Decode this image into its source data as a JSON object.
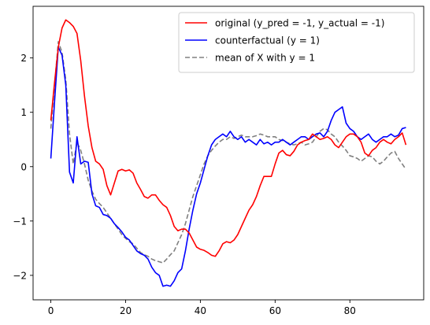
{
  "chart_data": {
    "type": "line",
    "title": "",
    "xlabel": "",
    "ylabel": "",
    "xlim": [
      -4.75,
      99.75
    ],
    "ylim": [
      -2.45,
      2.95
    ],
    "xticks": [
      0,
      20,
      40,
      60,
      80
    ],
    "yticks": [
      -2,
      -1,
      0,
      1,
      2
    ],
    "grid": false,
    "legend_position": "top-right",
    "series": [
      {
        "name": "original (y_pred = -1, y_actual = -1)",
        "color": "#ff0000",
        "dash": "solid",
        "x": [
          0,
          1,
          2,
          3,
          4,
          5,
          6,
          7,
          8,
          9,
          10,
          11,
          12,
          13,
          14,
          15,
          16,
          17,
          18,
          19,
          20,
          21,
          22,
          23,
          24,
          25,
          26,
          27,
          28,
          29,
          30,
          31,
          32,
          33,
          34,
          35,
          36,
          37,
          38,
          39,
          40,
          41,
          42,
          43,
          44,
          45,
          46,
          47,
          48,
          49,
          50,
          51,
          52,
          53,
          54,
          55,
          56,
          57,
          58,
          59,
          60,
          61,
          62,
          63,
          64,
          65,
          66,
          67,
          68,
          69,
          70,
          71,
          72,
          73,
          74,
          75,
          76,
          77,
          78,
          79,
          80,
          81,
          82,
          83,
          84,
          85,
          86,
          87,
          88,
          89,
          90,
          91,
          92,
          93,
          94,
          95
        ],
        "y": [
          0.85,
          1.55,
          2.2,
          2.55,
          2.7,
          2.65,
          2.58,
          2.45,
          1.95,
          1.3,
          0.75,
          0.35,
          0.1,
          0.05,
          -0.05,
          -0.35,
          -0.52,
          -0.3,
          -0.08,
          -0.05,
          -0.08,
          -0.06,
          -0.12,
          -0.3,
          -0.42,
          -0.55,
          -0.58,
          -0.52,
          -0.52,
          -0.62,
          -0.7,
          -0.75,
          -0.9,
          -1.1,
          -1.18,
          -1.15,
          -1.15,
          -1.22,
          -1.35,
          -1.48,
          -1.52,
          -1.54,
          -1.58,
          -1.63,
          -1.65,
          -1.55,
          -1.42,
          -1.38,
          -1.4,
          -1.35,
          -1.25,
          -1.1,
          -0.95,
          -0.8,
          -0.7,
          -0.55,
          -0.35,
          -0.18,
          -0.18,
          -0.18,
          0.05,
          0.25,
          0.3,
          0.22,
          0.2,
          0.28,
          0.4,
          0.45,
          0.48,
          0.5,
          0.6,
          0.55,
          0.5,
          0.52,
          0.55,
          0.5,
          0.4,
          0.35,
          0.45,
          0.55,
          0.6,
          0.6,
          0.55,
          0.45,
          0.25,
          0.2,
          0.3,
          0.35,
          0.45,
          0.5,
          0.45,
          0.42,
          0.5,
          0.55,
          0.62,
          0.4
        ]
      },
      {
        "name": "counterfactual (y = 1)",
        "color": "#0000ff",
        "dash": "solid",
        "x": [
          0,
          1,
          2,
          3,
          4,
          5,
          6,
          7,
          8,
          9,
          10,
          11,
          12,
          13,
          14,
          15,
          16,
          17,
          18,
          19,
          20,
          21,
          22,
          23,
          24,
          25,
          26,
          27,
          28,
          29,
          30,
          31,
          32,
          33,
          34,
          35,
          36,
          37,
          38,
          39,
          40,
          41,
          42,
          43,
          44,
          45,
          46,
          47,
          48,
          49,
          50,
          51,
          52,
          53,
          54,
          55,
          56,
          57,
          58,
          59,
          60,
          61,
          62,
          63,
          64,
          65,
          66,
          67,
          68,
          69,
          70,
          71,
          72,
          73,
          74,
          75,
          76,
          77,
          78,
          79,
          80,
          81,
          82,
          83,
          84,
          85,
          86,
          87,
          88,
          89,
          90,
          91,
          92,
          93,
          94,
          95
        ],
        "y": [
          0.15,
          1.2,
          2.2,
          2.05,
          1.5,
          -0.1,
          -0.3,
          0.55,
          0.05,
          0.1,
          0.08,
          -0.5,
          -0.72,
          -0.75,
          -0.88,
          -0.9,
          -0.95,
          -1.05,
          -1.12,
          -1.2,
          -1.3,
          -1.35,
          -1.45,
          -1.55,
          -1.6,
          -1.63,
          -1.7,
          -1.85,
          -1.95,
          -2.0,
          -2.2,
          -2.18,
          -2.2,
          -2.1,
          -1.95,
          -1.88,
          -1.55,
          -1.15,
          -0.8,
          -0.5,
          -0.3,
          -0.05,
          0.2,
          0.4,
          0.5,
          0.55,
          0.6,
          0.55,
          0.65,
          0.55,
          0.5,
          0.55,
          0.45,
          0.5,
          0.45,
          0.4,
          0.5,
          0.42,
          0.45,
          0.4,
          0.45,
          0.45,
          0.5,
          0.45,
          0.4,
          0.45,
          0.5,
          0.55,
          0.55,
          0.5,
          0.55,
          0.6,
          0.62,
          0.55,
          0.65,
          0.85,
          1.0,
          1.05,
          1.1,
          0.8,
          0.7,
          0.65,
          0.55,
          0.5,
          0.55,
          0.6,
          0.5,
          0.45,
          0.5,
          0.55,
          0.55,
          0.6,
          0.55,
          0.58,
          0.7,
          0.72
        ]
      },
      {
        "name": "mean of X with y = 1",
        "color": "#808080",
        "dash": "dashed",
        "x": [
          0,
          1,
          2,
          3,
          4,
          5,
          6,
          7,
          8,
          9,
          10,
          11,
          12,
          13,
          14,
          15,
          16,
          17,
          18,
          19,
          20,
          21,
          22,
          23,
          24,
          25,
          26,
          27,
          28,
          29,
          30,
          31,
          32,
          33,
          34,
          35,
          36,
          37,
          38,
          39,
          40,
          41,
          42,
          43,
          44,
          45,
          46,
          47,
          48,
          49,
          50,
          51,
          52,
          53,
          54,
          55,
          56,
          57,
          58,
          59,
          60,
          61,
          62,
          63,
          64,
          65,
          66,
          67,
          68,
          69,
          70,
          71,
          72,
          73,
          74,
          75,
          76,
          77,
          78,
          79,
          80,
          81,
          82,
          83,
          84,
          85,
          86,
          87,
          88,
          89,
          90,
          91,
          92,
          93,
          94,
          95
        ],
        "y": [
          0.7,
          1.5,
          2.3,
          2.1,
          1.6,
          0.6,
          0.05,
          0.45,
          0.3,
          0.05,
          -0.25,
          -0.45,
          -0.6,
          -0.68,
          -0.75,
          -0.85,
          -0.95,
          -1.05,
          -1.15,
          -1.25,
          -1.32,
          -1.38,
          -1.42,
          -1.5,
          -1.58,
          -1.62,
          -1.65,
          -1.7,
          -1.73,
          -1.75,
          -1.77,
          -1.7,
          -1.62,
          -1.55,
          -1.4,
          -1.25,
          -1.05,
          -0.8,
          -0.55,
          -0.35,
          -0.15,
          0.05,
          0.2,
          0.3,
          0.38,
          0.45,
          0.5,
          0.5,
          0.55,
          0.52,
          0.55,
          0.58,
          0.55,
          0.55,
          0.55,
          0.57,
          0.6,
          0.58,
          0.55,
          0.55,
          0.55,
          0.5,
          0.48,
          0.45,
          0.42,
          0.4,
          0.42,
          0.45,
          0.4,
          0.42,
          0.45,
          0.55,
          0.65,
          0.7,
          0.68,
          0.6,
          0.55,
          0.45,
          0.38,
          0.3,
          0.2,
          0.18,
          0.15,
          0.1,
          0.15,
          0.2,
          0.18,
          0.1,
          0.05,
          0.1,
          0.18,
          0.25,
          0.28,
          0.15,
          0.05,
          -0.05
        ]
      }
    ]
  }
}
